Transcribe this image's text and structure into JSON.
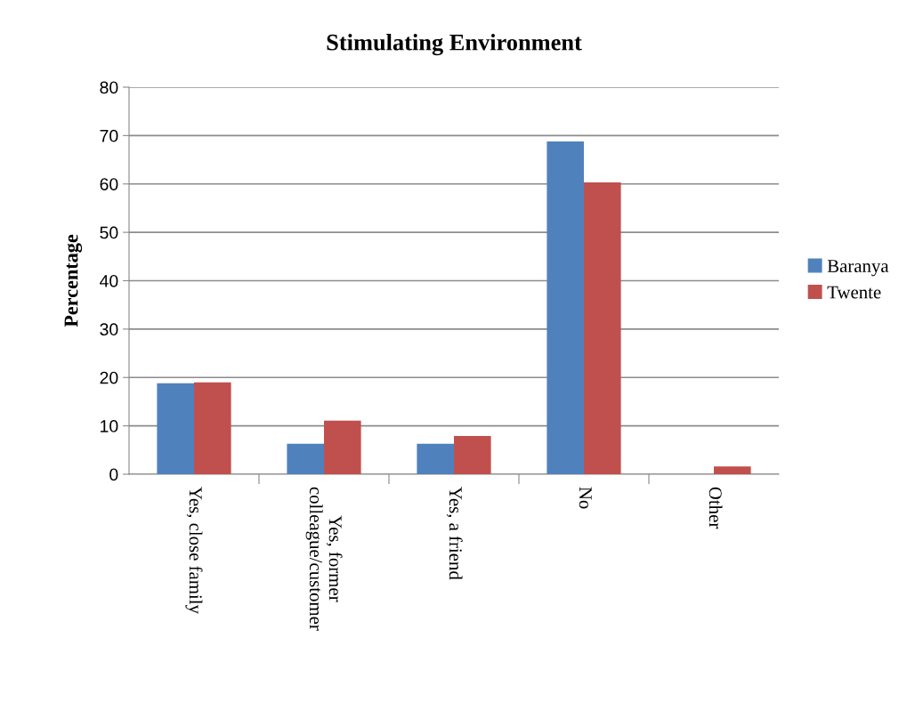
{
  "chart_data": {
    "type": "bar",
    "title": "Stimulating Environment",
    "ylabel": "Percentage",
    "categories": [
      "Yes, close family",
      "Yes, former\ncolleague/customer",
      "Yes, a friend",
      "No",
      "Other"
    ],
    "series": [
      {
        "name": "Baranya",
        "color": "#4f81bd",
        "values": [
          18.8,
          6.3,
          6.3,
          68.8,
          0
        ]
      },
      {
        "name": "Twente",
        "color": "#c0504d",
        "values": [
          19.0,
          11.1,
          7.9,
          60.3,
          1.6
        ]
      }
    ],
    "ylim": [
      0,
      80
    ],
    "yticks": [
      0,
      10,
      20,
      30,
      40,
      50,
      60,
      70,
      80
    ],
    "grid": "y",
    "legend": "right"
  }
}
